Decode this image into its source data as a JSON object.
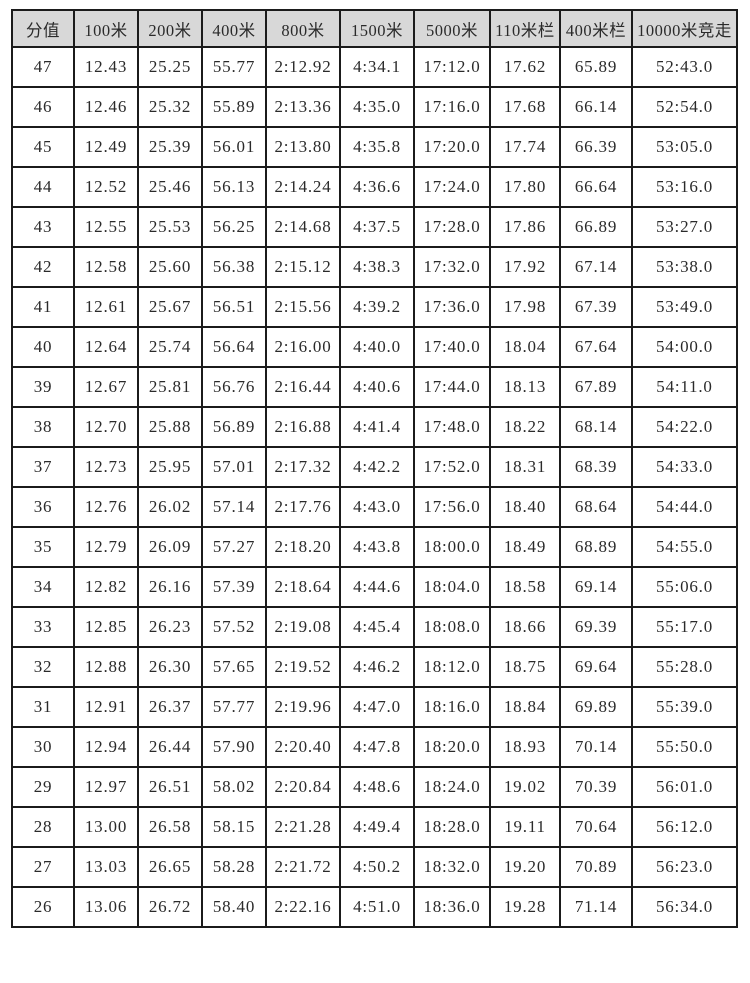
{
  "colors": {
    "header_bg": "#d8d8d8",
    "border": "#1b1b1b",
    "text": "#2a2a2a",
    "page_bg": "#ffffff"
  },
  "table": {
    "columns": [
      "分值",
      "100米",
      "200米",
      "400米",
      "800米",
      "1500米",
      "5000米",
      "110米栏",
      "400米栏",
      "10000米竞走"
    ],
    "rows": [
      [
        "47",
        "12.43",
        "25.25",
        "55.77",
        "2:12.92",
        "4:34.1",
        "17:12.0",
        "17.62",
        "65.89",
        "52:43.0"
      ],
      [
        "46",
        "12.46",
        "25.32",
        "55.89",
        "2:13.36",
        "4:35.0",
        "17:16.0",
        "17.68",
        "66.14",
        "52:54.0"
      ],
      [
        "45",
        "12.49",
        "25.39",
        "56.01",
        "2:13.80",
        "4:35.8",
        "17:20.0",
        "17.74",
        "66.39",
        "53:05.0"
      ],
      [
        "44",
        "12.52",
        "25.46",
        "56.13",
        "2:14.24",
        "4:36.6",
        "17:24.0",
        "17.80",
        "66.64",
        "53:16.0"
      ],
      [
        "43",
        "12.55",
        "25.53",
        "56.25",
        "2:14.68",
        "4:37.5",
        "17:28.0",
        "17.86",
        "66.89",
        "53:27.0"
      ],
      [
        "42",
        "12.58",
        "25.60",
        "56.38",
        "2:15.12",
        "4:38.3",
        "17:32.0",
        "17.92",
        "67.14",
        "53:38.0"
      ],
      [
        "41",
        "12.61",
        "25.67",
        "56.51",
        "2:15.56",
        "4:39.2",
        "17:36.0",
        "17.98",
        "67.39",
        "53:49.0"
      ],
      [
        "40",
        "12.64",
        "25.74",
        "56.64",
        "2:16.00",
        "4:40.0",
        "17:40.0",
        "18.04",
        "67.64",
        "54:00.0"
      ],
      [
        "39",
        "12.67",
        "25.81",
        "56.76",
        "2:16.44",
        "4:40.6",
        "17:44.0",
        "18.13",
        "67.89",
        "54:11.0"
      ],
      [
        "38",
        "12.70",
        "25.88",
        "56.89",
        "2:16.88",
        "4:41.4",
        "17:48.0",
        "18.22",
        "68.14",
        "54:22.0"
      ],
      [
        "37",
        "12.73",
        "25.95",
        "57.01",
        "2:17.32",
        "4:42.2",
        "17:52.0",
        "18.31",
        "68.39",
        "54:33.0"
      ],
      [
        "36",
        "12.76",
        "26.02",
        "57.14",
        "2:17.76",
        "4:43.0",
        "17:56.0",
        "18.40",
        "68.64",
        "54:44.0"
      ],
      [
        "35",
        "12.79",
        "26.09",
        "57.27",
        "2:18.20",
        "4:43.8",
        "18:00.0",
        "18.49",
        "68.89",
        "54:55.0"
      ],
      [
        "34",
        "12.82",
        "26.16",
        "57.39",
        "2:18.64",
        "4:44.6",
        "18:04.0",
        "18.58",
        "69.14",
        "55:06.0"
      ],
      [
        "33",
        "12.85",
        "26.23",
        "57.52",
        "2:19.08",
        "4:45.4",
        "18:08.0",
        "18.66",
        "69.39",
        "55:17.0"
      ],
      [
        "32",
        "12.88",
        "26.30",
        "57.65",
        "2:19.52",
        "4:46.2",
        "18:12.0",
        "18.75",
        "69.64",
        "55:28.0"
      ],
      [
        "31",
        "12.91",
        "26.37",
        "57.77",
        "2:19.96",
        "4:47.0",
        "18:16.0",
        "18.84",
        "69.89",
        "55:39.0"
      ],
      [
        "30",
        "12.94",
        "26.44",
        "57.90",
        "2:20.40",
        "4:47.8",
        "18:20.0",
        "18.93",
        "70.14",
        "55:50.0"
      ],
      [
        "29",
        "12.97",
        "26.51",
        "58.02",
        "2:20.84",
        "4:48.6",
        "18:24.0",
        "19.02",
        "70.39",
        "56:01.0"
      ],
      [
        "28",
        "13.00",
        "26.58",
        "58.15",
        "2:21.28",
        "4:49.4",
        "18:28.0",
        "19.11",
        "70.64",
        "56:12.0"
      ],
      [
        "27",
        "13.03",
        "26.65",
        "58.28",
        "2:21.72",
        "4:50.2",
        "18:32.0",
        "19.20",
        "70.89",
        "56:23.0"
      ],
      [
        "26",
        "13.06",
        "26.72",
        "58.40",
        "2:22.16",
        "4:51.0",
        "18:36.0",
        "19.28",
        "71.14",
        "56:34.0"
      ]
    ]
  }
}
